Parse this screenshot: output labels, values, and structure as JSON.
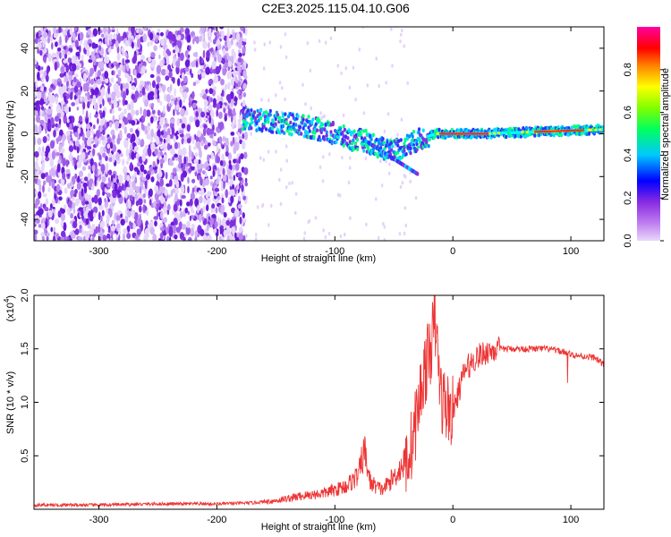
{
  "title": "C2E3.2025.115.04.10.G06",
  "chart_data": [
    {
      "type": "heatmap",
      "xlabel": "Height of straight line (km)",
      "ylabel": "Frequency (Hz)",
      "xlim": [
        -355,
        128
      ],
      "ylim": [
        -50,
        50
      ],
      "xticks": [
        -300,
        -200,
        -100,
        0,
        100
      ],
      "yticks": [
        -40,
        -20,
        0,
        20,
        40
      ],
      "noise_region_x": [
        -355,
        -175
      ],
      "signal_ridge": {
        "x": [
          -175,
          -160,
          -140,
          -120,
          -100,
          -85,
          -75,
          -60,
          -45,
          -30,
          -15,
          0,
          25,
          50,
          75,
          100,
          128
        ],
        "frequency": [
          7,
          6,
          5,
          3,
          0,
          -3,
          -3,
          -7,
          -7,
          -3,
          0,
          0,
          0,
          0.5,
          1,
          1.5,
          2
        ]
      },
      "colorbar": {
        "label": "Normalized spectral amplitude",
        "range": [
          0.0,
          1.0
        ],
        "ticks": [
          "0.0",
          "0.2",
          "0.4",
          "0.6",
          "0.8"
        ],
        "tick_values": [
          0.0,
          0.2,
          0.4,
          0.6,
          0.8
        ]
      },
      "colors": [
        "#ffffff",
        "#d8b8f8",
        "#8a2be2",
        "#0000ff",
        "#00ffff",
        "#00ff00",
        "#ffff00",
        "#ff0000",
        "#ff00ff"
      ]
    },
    {
      "type": "line",
      "xlabel": "Height of straight line (km)",
      "ylabel": "SNR (10 * v/v)",
      "yscale_label": "(x10",
      "yscale_exp": "4",
      "yscale_close": ")",
      "xlim": [
        -355,
        128
      ],
      "ylim": [
        0,
        2.0
      ],
      "xticks": [
        -300,
        -200,
        -100,
        0,
        100
      ],
      "yticks": [
        "0.5",
        "1.0",
        "1.5",
        "2.0"
      ],
      "ytick_values": [
        0.5,
        1.0,
        1.5,
        2.0
      ],
      "series_color": "#ee3333",
      "series": [
        {
          "x": [
            -355,
            -300,
            -250,
            -200,
            -170,
            -150,
            -130,
            -110,
            -100,
            -90,
            -80,
            -75,
            -70,
            -60,
            -50,
            -40,
            -35,
            -30,
            -25,
            -20,
            -15,
            -10,
            -5,
            0,
            5,
            10,
            20,
            30,
            40,
            50,
            60,
            70,
            80,
            90,
            100,
            110,
            120,
            128
          ],
          "values": [
            0.04,
            0.04,
            0.05,
            0.05,
            0.06,
            0.08,
            0.12,
            0.15,
            0.18,
            0.22,
            0.32,
            0.55,
            0.25,
            0.18,
            0.3,
            0.45,
            0.6,
            0.9,
            1.25,
            1.45,
            1.75,
            1.05,
            0.95,
            0.9,
            1.1,
            1.3,
            1.42,
            1.48,
            1.5,
            1.5,
            1.5,
            1.5,
            1.5,
            1.48,
            1.45,
            1.43,
            1.42,
            1.35
          ]
        }
      ]
    }
  ]
}
